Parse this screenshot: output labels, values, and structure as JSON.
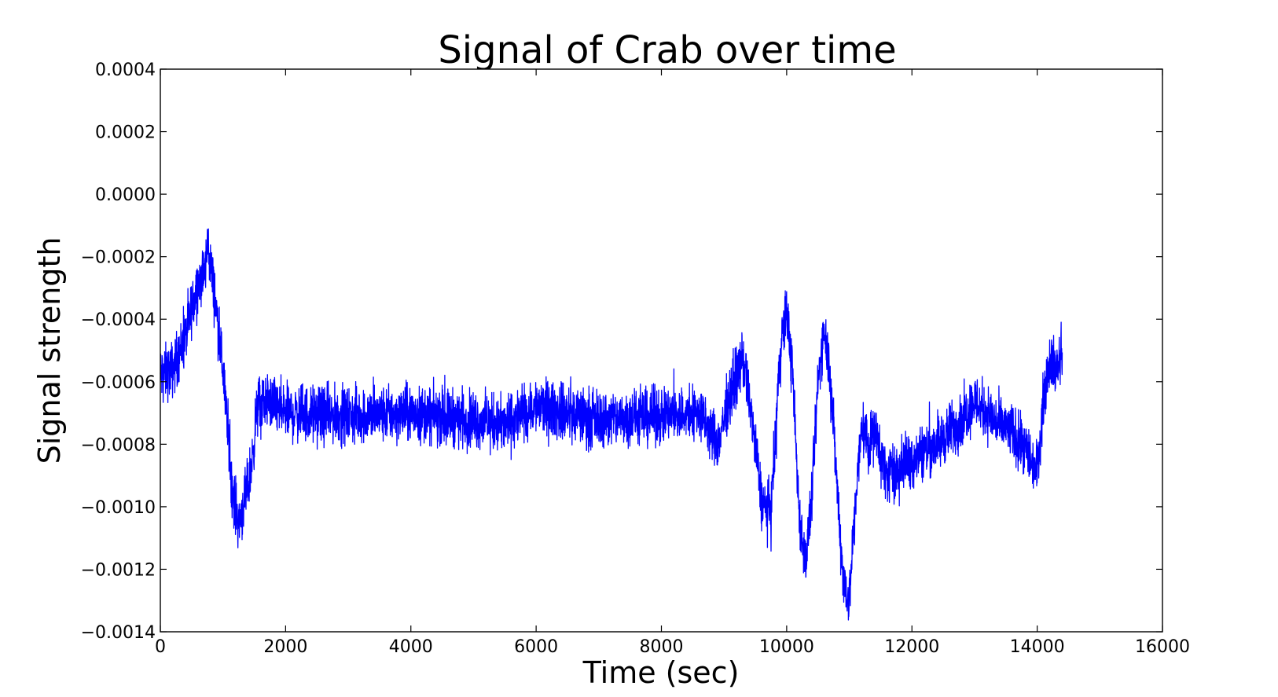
{
  "chart_data": {
    "type": "line",
    "title": "Signal of Crab over time",
    "xlabel": "Time (sec)",
    "ylabel": "Signal strength",
    "xlim": [
      0,
      16000
    ],
    "ylim": [
      -0.0014,
      0.0004
    ],
    "grid": false,
    "colors": {
      "line": "#0000ff",
      "axes": "#000000",
      "background": "#ffffff"
    },
    "x_ticks": [
      "0",
      "2000",
      "4000",
      "6000",
      "8000",
      "10000",
      "12000",
      "14000",
      "16000"
    ],
    "y_ticks": [
      "0.0004",
      "0.0002",
      "0.0000",
      "−0.0002",
      "−0.0004",
      "−0.0006",
      "−0.0008",
      "−0.0010",
      "−0.0012",
      "−0.0014"
    ],
    "series": [
      {
        "x": [
          0,
          200,
          400,
          600,
          700,
          760,
          850,
          950,
          1050,
          1150,
          1250,
          1350,
          1450,
          1550,
          1700,
          2000,
          3000,
          4000,
          5000,
          5500,
          6000,
          7000,
          8000,
          8600,
          8900,
          9100,
          9300,
          9450,
          9600,
          9750,
          9900,
          10000,
          10100,
          10200,
          10300,
          10400,
          10500,
          10600,
          10700,
          10800,
          10900,
          11000,
          11100,
          11200,
          11300,
          11400,
          11600,
          11800,
          12000,
          12200,
          12400,
          12600,
          12800,
          13000,
          13200,
          13400,
          13600,
          13800,
          14000,
          14100,
          14200,
          14300,
          14400
        ],
        "y": [
          -0.00058,
          -0.00056,
          -0.00046,
          -0.00028,
          -0.00026,
          -0.00016,
          -0.0003,
          -0.00046,
          -0.00068,
          -0.00095,
          -0.00105,
          -0.00098,
          -0.00088,
          -0.00068,
          -0.00066,
          -0.0007,
          -0.00071,
          -0.0007,
          -0.00072,
          -0.00074,
          -0.00068,
          -0.00072,
          -0.00071,
          -0.0007,
          -0.0008,
          -0.00064,
          -0.00052,
          -0.00072,
          -0.00098,
          -0.00102,
          -0.0005,
          -0.00036,
          -0.0006,
          -0.00102,
          -0.00118,
          -0.00098,
          -0.0006,
          -0.00042,
          -0.00058,
          -0.00092,
          -0.00122,
          -0.0013,
          -0.00098,
          -0.00074,
          -0.0008,
          -0.00076,
          -0.0009,
          -0.00088,
          -0.00084,
          -0.00082,
          -0.0008,
          -0.00076,
          -0.00072,
          -0.00066,
          -0.0007,
          -0.00074,
          -0.00076,
          -0.00082,
          -0.00088,
          -0.00066,
          -0.00052,
          -0.00056,
          -0.00052
        ],
        "noise_amplitude": 8e-05
      }
    ]
  }
}
